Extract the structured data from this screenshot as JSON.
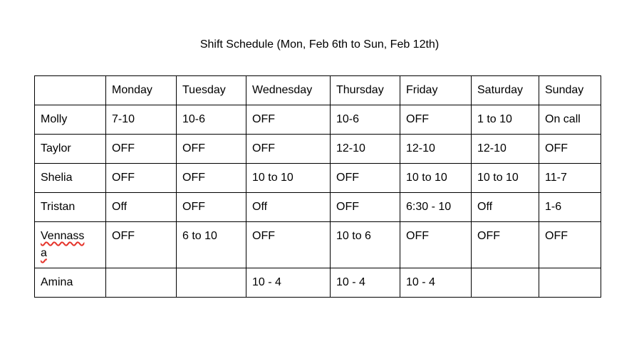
{
  "colors": {
    "background": "#ffffff",
    "text": "#000000",
    "border": "#000000",
    "spellcheck": "#e5342b"
  },
  "title": "Shift Schedule (Mon, Feb 6th to Sun, Feb 12th)",
  "table": {
    "columns": [
      "",
      "Monday",
      "Tuesday",
      "Wednesday",
      "Thursday",
      "Friday",
      "Saturday",
      "Sunday"
    ],
    "rows": [
      {
        "name": "Molly",
        "shifts": [
          "7-10",
          "10-6",
          "OFF",
          "10-6",
          "OFF",
          "1 to 10",
          "On call"
        ]
      },
      {
        "name": "Taylor",
        "shifts": [
          "OFF",
          "OFF",
          "OFF",
          "12-10",
          "12-10",
          "12-10",
          "OFF"
        ]
      },
      {
        "name": "Shelia",
        "shifts": [
          "OFF",
          "OFF",
          "10 to 10",
          "OFF",
          "10 to 10",
          "10 to 10",
          "11-7"
        ]
      },
      {
        "name": "Tristan",
        "shifts": [
          "Off",
          "OFF",
          "Off",
          "OFF",
          "6:30 - 10",
          "Off",
          "1-6"
        ]
      },
      {
        "name": "Vennassa",
        "misspelled": true,
        "shifts": [
          "OFF",
          "6 to 10",
          "OFF",
          "10 to 6",
          "OFF",
          "OFF",
          "OFF"
        ]
      },
      {
        "name": "Amina",
        "shifts": [
          "",
          "",
          "10 - 4",
          "10 - 4",
          "10 - 4",
          "",
          ""
        ]
      }
    ]
  }
}
